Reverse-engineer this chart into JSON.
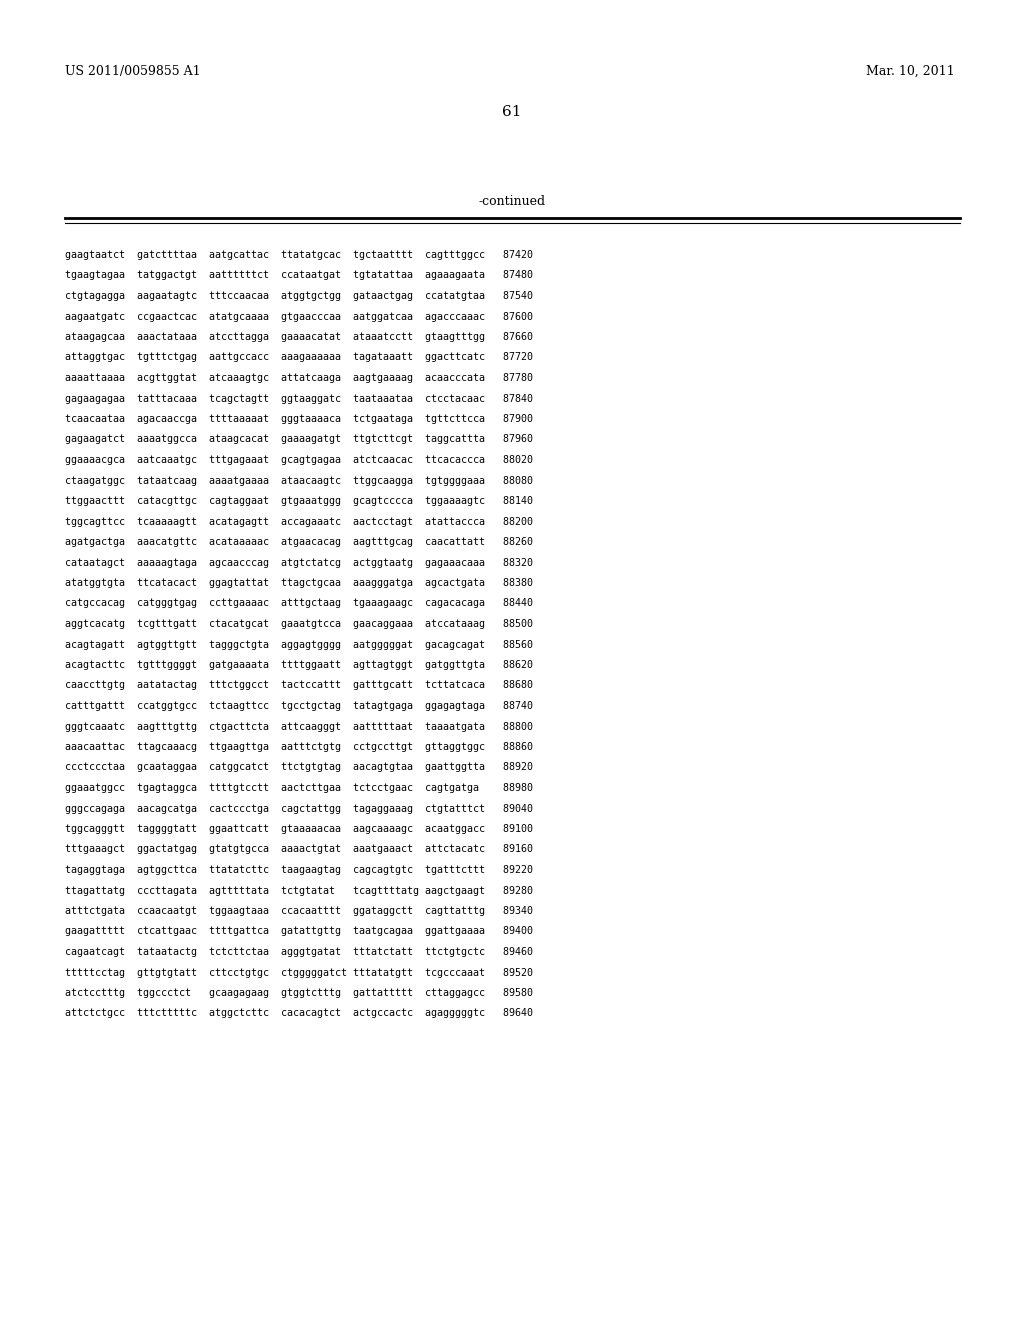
{
  "header_left": "US 2011/0059855 A1",
  "header_right": "Mar. 10, 2011",
  "page_number": "61",
  "continued_label": "-continued",
  "background_color": "#ffffff",
  "text_color": "#000000",
  "lines": [
    "gaagtaatct  gatcttttaa  aatgcattac  ttatatgcac  tgctaatttt  cagtttggcc   87420",
    "tgaagtagaa  tatggactgt  aattttttct  ccataatgat  tgtatattaa  agaaagaata   87480",
    "ctgtagagga  aagaatagtc  tttccaacaa  atggtgctgg  gataactgag  ccatatgtaa   87540",
    "aagaatgatc  ccgaactcac  atatgcaaaa  gtgaacccaa  aatggatcaa  agacccaaac   87600",
    "ataagagcaa  aaactataaa  atccttagga  gaaaacatat  ataaatcctt  gtaagtttgg   87660",
    "attaggtgac  tgtttctgag  aattgccacc  aaagaaaaaa  tagataaatt  ggacttcatc   87720",
    "aaaattaaaa  acgttggtat  atcaaagtgc  attatcaaga  aagtgaaaag  acaacccata   87780",
    "gagaagagaa  tatttacaaa  tcagctagtt  ggtaaggatc  taataaataa  ctcctacaac   87840",
    "tcaacaataa  agacaaccga  ttttaaaaat  gggtaaaaca  tctgaataga  tgttcttcca   87900",
    "gagaagatct  aaaatggcca  ataagcacat  gaaaagatgt  ttgtcttcgt  taggcattta   87960",
    "ggaaaacgca  aatcaaatgc  tttgagaaat  gcagtgagaa  atctcaacac  ttcacaccca   88020",
    "ctaagatggc  tataatcaag  aaaatgaaaa  ataacaagtc  ttggcaagga  tgtggggaaa   88080",
    "ttggaacttt  catacgttgc  cagtaggaat  gtgaaatggg  gcagtcccca  tggaaaagtc   88140",
    "tggcagttcc  tcaaaaagtt  acatagagtt  accagaaatc  aactcctagt  atattaccca   88200",
    "agatgactga  aaacatgttc  acataaaaac  atgaacacag  aagtttgcag  caacattatt   88260",
    "cataatagct  aaaaagtaga  agcaacccag  atgtctatcg  actggtaatg  gagaaacaaa   88320",
    "atatggtgta  ttcatacact  ggagtattat  ttagctgcaa  aaagggatga  agcactgata   88380",
    "catgccacag  catgggtgag  ccttgaaaac  atttgctaag  tgaaagaagc  cagacacaga   88440",
    "aggtcacatg  tcgtttgatt  ctacatgcat  gaaatgtcca  gaacaggaaa  atccataaag   88500",
    "acagtagatt  agtggttgtt  tagggctgta  aggagtgggg  aatgggggat  gacagcagat   88560",
    "acagtacttc  tgtttggggt  gatgaaaata  ttttggaatt  agttagtggt  gatggttgta   88620",
    "caaccttgtg  aatatactag  tttctggcct  tactccattt  gatttgcatt  tcttatcaca   88680",
    "catttgattt  ccatggtgcc  tctaagttcc  tgcctgctag  tatagtgaga  ggagagtaga   88740",
    "gggtcaaatc  aagtttgttg  ctgacttcta  attcaagggt  aatttttaat  taaaatgata   88800",
    "aaacaattac  ttagcaaacg  ttgaagttga  aatttctgtg  cctgccttgt  gttaggtggc   88860",
    "ccctccctaa  gcaataggaa  catggcatct  ttctgtgtag  aacagtgtaa  gaattggtta   88920",
    "ggaaatggcc  tgagtaggca  ttttgtcctt  aactcttgaa  tctcctgaac  cagtgatga    88980",
    "gggccagaga  aacagcatga  cactccctga  cagctattgg  tagaggaaag  ctgtatttct   89040",
    "tggcagggtt  taggggtatt  ggaattcatt  gtaaaaacaa  aagcaaaagc  acaatggacc   89100",
    "tttgaaagct  ggactatgag  gtatgtgcca  aaaactgtat  aaatgaaact  attctacatc   89160",
    "tagaggtaga  agtggcttca  ttatatcttc  taagaagtag  cagcagtgtc  tgatttcttt   89220",
    "ttagattatg  cccttagata  agtttttata  tctgtatat   tcagttttatg aagctgaagt   89280",
    "atttctgata  ccaacaatgt  tggaagtaaa  ccacaatttt  ggataggctt  cagttatttg   89340",
    "gaagattttt  ctcattgaac  ttttgattca  gatattgttg  taatgcagaa  ggattgaaaa   89400",
    "cagaatcagt  tataatactg  tctcttctaa  agggtgatat  tttatctatt  ttctgtgctc   89460",
    "tttttcctag  gttgtgtatt  cttcctgtgc  ctgggggatct tttatatgtt  tcgcccaaat   89520",
    "atctcctttg  tggccctct   gcaagagaag  gtggtctttg  gattattttt  cttaggagcc   89580",
    "attctctgcc  tttctttttc  atggctcttc  cacacagtct  actgccactc  agagggggtc   89640"
  ]
}
